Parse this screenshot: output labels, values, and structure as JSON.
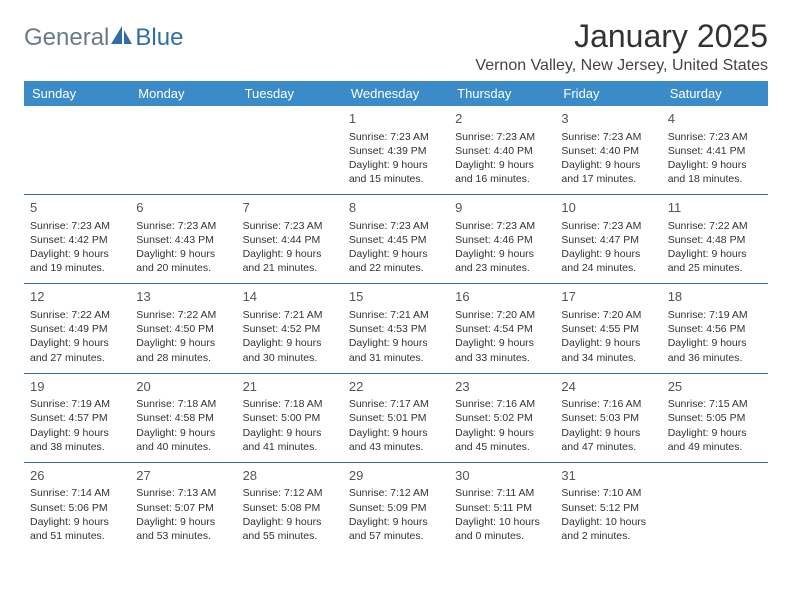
{
  "logo": {
    "text_general": "General",
    "text_blue": "Blue"
  },
  "title": "January 2025",
  "location": "Vernon Valley, New Jersey, United States",
  "colors": {
    "header_bg": "#3b8bc9",
    "header_text": "#ffffff",
    "row_divider": "#3b6a92",
    "logo_gray": "#6b7a87",
    "logo_blue": "#2f6fa8",
    "body_text": "#333333"
  },
  "day_headers": [
    "Sunday",
    "Monday",
    "Tuesday",
    "Wednesday",
    "Thursday",
    "Friday",
    "Saturday"
  ],
  "weeks": [
    [
      null,
      null,
      null,
      {
        "day": "1",
        "sunrise": "Sunrise: 7:23 AM",
        "sunset": "Sunset: 4:39 PM",
        "daylight": "Daylight: 9 hours and 15 minutes."
      },
      {
        "day": "2",
        "sunrise": "Sunrise: 7:23 AM",
        "sunset": "Sunset: 4:40 PM",
        "daylight": "Daylight: 9 hours and 16 minutes."
      },
      {
        "day": "3",
        "sunrise": "Sunrise: 7:23 AM",
        "sunset": "Sunset: 4:40 PM",
        "daylight": "Daylight: 9 hours and 17 minutes."
      },
      {
        "day": "4",
        "sunrise": "Sunrise: 7:23 AM",
        "sunset": "Sunset: 4:41 PM",
        "daylight": "Daylight: 9 hours and 18 minutes."
      }
    ],
    [
      {
        "day": "5",
        "sunrise": "Sunrise: 7:23 AM",
        "sunset": "Sunset: 4:42 PM",
        "daylight": "Daylight: 9 hours and 19 minutes."
      },
      {
        "day": "6",
        "sunrise": "Sunrise: 7:23 AM",
        "sunset": "Sunset: 4:43 PM",
        "daylight": "Daylight: 9 hours and 20 minutes."
      },
      {
        "day": "7",
        "sunrise": "Sunrise: 7:23 AM",
        "sunset": "Sunset: 4:44 PM",
        "daylight": "Daylight: 9 hours and 21 minutes."
      },
      {
        "day": "8",
        "sunrise": "Sunrise: 7:23 AM",
        "sunset": "Sunset: 4:45 PM",
        "daylight": "Daylight: 9 hours and 22 minutes."
      },
      {
        "day": "9",
        "sunrise": "Sunrise: 7:23 AM",
        "sunset": "Sunset: 4:46 PM",
        "daylight": "Daylight: 9 hours and 23 minutes."
      },
      {
        "day": "10",
        "sunrise": "Sunrise: 7:23 AM",
        "sunset": "Sunset: 4:47 PM",
        "daylight": "Daylight: 9 hours and 24 minutes."
      },
      {
        "day": "11",
        "sunrise": "Sunrise: 7:22 AM",
        "sunset": "Sunset: 4:48 PM",
        "daylight": "Daylight: 9 hours and 25 minutes."
      }
    ],
    [
      {
        "day": "12",
        "sunrise": "Sunrise: 7:22 AM",
        "sunset": "Sunset: 4:49 PM",
        "daylight": "Daylight: 9 hours and 27 minutes."
      },
      {
        "day": "13",
        "sunrise": "Sunrise: 7:22 AM",
        "sunset": "Sunset: 4:50 PM",
        "daylight": "Daylight: 9 hours and 28 minutes."
      },
      {
        "day": "14",
        "sunrise": "Sunrise: 7:21 AM",
        "sunset": "Sunset: 4:52 PM",
        "daylight": "Daylight: 9 hours and 30 minutes."
      },
      {
        "day": "15",
        "sunrise": "Sunrise: 7:21 AM",
        "sunset": "Sunset: 4:53 PM",
        "daylight": "Daylight: 9 hours and 31 minutes."
      },
      {
        "day": "16",
        "sunrise": "Sunrise: 7:20 AM",
        "sunset": "Sunset: 4:54 PM",
        "daylight": "Daylight: 9 hours and 33 minutes."
      },
      {
        "day": "17",
        "sunrise": "Sunrise: 7:20 AM",
        "sunset": "Sunset: 4:55 PM",
        "daylight": "Daylight: 9 hours and 34 minutes."
      },
      {
        "day": "18",
        "sunrise": "Sunrise: 7:19 AM",
        "sunset": "Sunset: 4:56 PM",
        "daylight": "Daylight: 9 hours and 36 minutes."
      }
    ],
    [
      {
        "day": "19",
        "sunrise": "Sunrise: 7:19 AM",
        "sunset": "Sunset: 4:57 PM",
        "daylight": "Daylight: 9 hours and 38 minutes."
      },
      {
        "day": "20",
        "sunrise": "Sunrise: 7:18 AM",
        "sunset": "Sunset: 4:58 PM",
        "daylight": "Daylight: 9 hours and 40 minutes."
      },
      {
        "day": "21",
        "sunrise": "Sunrise: 7:18 AM",
        "sunset": "Sunset: 5:00 PM",
        "daylight": "Daylight: 9 hours and 41 minutes."
      },
      {
        "day": "22",
        "sunrise": "Sunrise: 7:17 AM",
        "sunset": "Sunset: 5:01 PM",
        "daylight": "Daylight: 9 hours and 43 minutes."
      },
      {
        "day": "23",
        "sunrise": "Sunrise: 7:16 AM",
        "sunset": "Sunset: 5:02 PM",
        "daylight": "Daylight: 9 hours and 45 minutes."
      },
      {
        "day": "24",
        "sunrise": "Sunrise: 7:16 AM",
        "sunset": "Sunset: 5:03 PM",
        "daylight": "Daylight: 9 hours and 47 minutes."
      },
      {
        "day": "25",
        "sunrise": "Sunrise: 7:15 AM",
        "sunset": "Sunset: 5:05 PM",
        "daylight": "Daylight: 9 hours and 49 minutes."
      }
    ],
    [
      {
        "day": "26",
        "sunrise": "Sunrise: 7:14 AM",
        "sunset": "Sunset: 5:06 PM",
        "daylight": "Daylight: 9 hours and 51 minutes."
      },
      {
        "day": "27",
        "sunrise": "Sunrise: 7:13 AM",
        "sunset": "Sunset: 5:07 PM",
        "daylight": "Daylight: 9 hours and 53 minutes."
      },
      {
        "day": "28",
        "sunrise": "Sunrise: 7:12 AM",
        "sunset": "Sunset: 5:08 PM",
        "daylight": "Daylight: 9 hours and 55 minutes."
      },
      {
        "day": "29",
        "sunrise": "Sunrise: 7:12 AM",
        "sunset": "Sunset: 5:09 PM",
        "daylight": "Daylight: 9 hours and 57 minutes."
      },
      {
        "day": "30",
        "sunrise": "Sunrise: 7:11 AM",
        "sunset": "Sunset: 5:11 PM",
        "daylight": "Daylight: 10 hours and 0 minutes."
      },
      {
        "day": "31",
        "sunrise": "Sunrise: 7:10 AM",
        "sunset": "Sunset: 5:12 PM",
        "daylight": "Daylight: 10 hours and 2 minutes."
      },
      null
    ]
  ]
}
